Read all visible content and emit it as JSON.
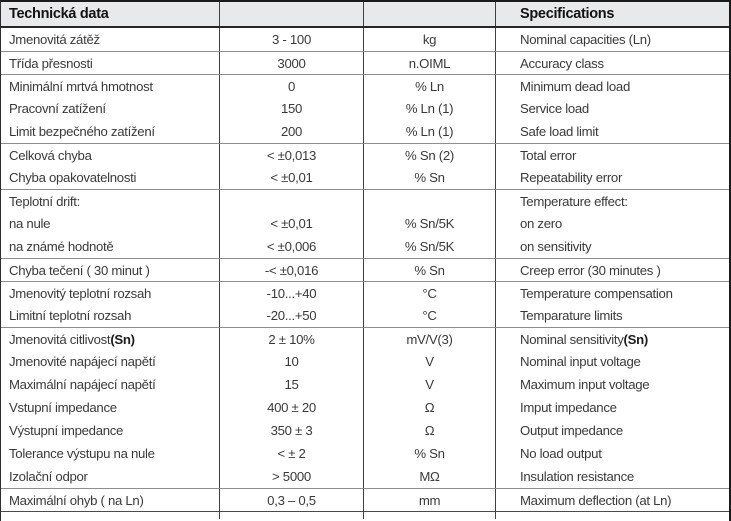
{
  "header": {
    "left": "Technická data",
    "right": "Specifications"
  },
  "colors": {
    "header_background": "#e8e9ea",
    "outer_border": "#1b1b1b",
    "group_separator": "#8e8e8e",
    "column_divider": "#3f3f3f",
    "text": "#3a3a3a"
  },
  "table": {
    "rows": [
      {
        "cz": "Jmenovitá zátěž",
        "value": "3 - 100",
        "unit": "kg",
        "en": "Nominal capacities (Ln)",
        "sep": false
      },
      {
        "cz": "Třída přesnosti",
        "value": "3000",
        "unit": "n.OIML",
        "en": "Accuracy class",
        "sep": true
      },
      {
        "cz": "Minimální mrtvá hmotnost",
        "value": "0",
        "unit": "% Ln",
        "en": "Minimum dead load",
        "sep": true
      },
      {
        "cz": "Pracovní zatížení",
        "value": "150",
        "unit": "% Ln (1)",
        "en": "Service load",
        "sep": false
      },
      {
        "cz": "Limit bezpečného zatížení",
        "value": "200",
        "unit": "% Ln (1)",
        "en": "Safe load limit",
        "sep": false
      },
      {
        "cz": "Celková chyba",
        "value": "< ±0,013",
        "unit": "% Sn (2)",
        "en": "Total error",
        "sep": true
      },
      {
        "cz": "Chyba opakovatelnosti",
        "value": "< ±0,01",
        "unit": "% Sn",
        "en": "Repeatability error",
        "sep": false
      },
      {
        "cz": "Teplotní drift:",
        "value": "",
        "unit": "",
        "en": "Temperature effect:",
        "sep": true
      },
      {
        "cz": "na nule",
        "value": "< ±0,01",
        "unit": "% Sn/5K",
        "en": "on zero",
        "sep": false
      },
      {
        "cz": "na známé hodnotě",
        "value": "< ±0,006",
        "unit": "% Sn/5K",
        "en": "on sensitivity",
        "sep": false
      },
      {
        "cz": "Chyba tečení ( 30 minut )",
        "value": "-< ±0,016",
        "unit": "% Sn",
        "en": "Creep error (30 minutes )",
        "sep": true
      },
      {
        "cz": "Jmenovitý teplotní rozsah",
        "value": "-10...+40",
        "unit": "°C",
        "en": "Temperature compensation",
        "sep": true
      },
      {
        "cz": "Limitní teplotní rozsah",
        "value": "-20...+50",
        "unit": "°C",
        "en": "Temparature limits",
        "sep": false
      },
      {
        "cz": "Jmenovitá citlivost ",
        "cz_bold": "(Sn)",
        "value": "2 ± 10%",
        "unit": "mV/V(3)",
        "en": "Nominal sensitivity ",
        "en_bold": "(Sn)",
        "sep": true
      },
      {
        "cz": "Jmenovité napájecí napětí",
        "value": "10",
        "unit": "V",
        "en": "Nominal input voltage",
        "sep": false
      },
      {
        "cz": "Maximální napájecí napětí",
        "value": "15",
        "unit": "V",
        "en": "Maximum input voltage",
        "sep": false
      },
      {
        "cz": "Vstupní impedance",
        "value": "400 ± 20",
        "unit": "Ω",
        "en": "Imput impedance",
        "sep": false
      },
      {
        "cz": "Výstupní impedance",
        "value": "350 ± 3",
        "unit": "Ω",
        "en": "Output impedance",
        "sep": false
      },
      {
        "cz": "Tolerance výstupu na nule",
        "value": "< ± 2",
        "unit": "% Sn",
        "en": "No load output",
        "sep": false
      },
      {
        "cz": "Izolační odpor",
        "value": "> 5000",
        "unit": "MΩ",
        "en": "Insulation resistance",
        "sep": false
      },
      {
        "cz": "Maximální ohyb ( na Ln)",
        "value": "0,3 – 0,5",
        "unit": "mm",
        "en": "Maximum deflection (at Ln)",
        "sep": true
      }
    ]
  }
}
